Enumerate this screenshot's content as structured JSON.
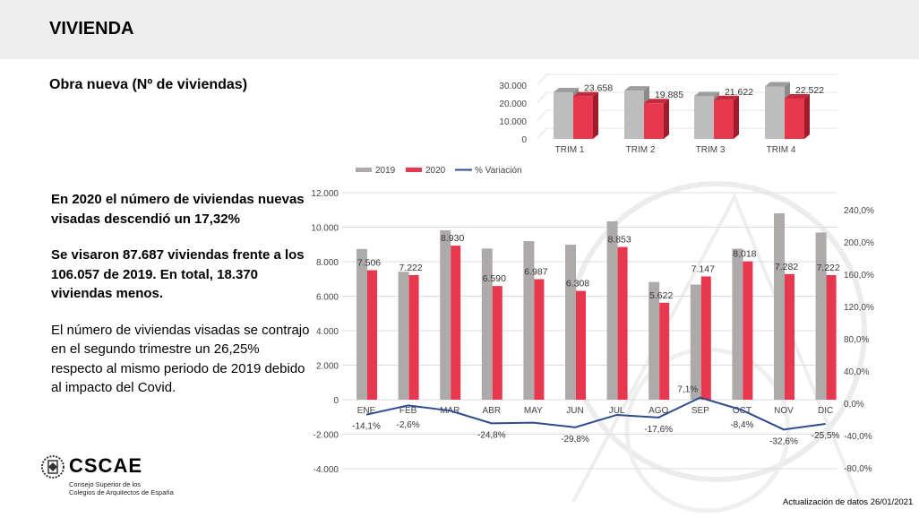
{
  "header": {
    "title": "VIVIENDA"
  },
  "subtitle": "Obra nueva (Nº de viviendas)",
  "text": {
    "p1": "En 2020 el número de viviendas nuevas visadas descendió un 17,32%",
    "p2": "Se visaron 87.687 viviendas frente a los 106.057 de 2019. En total, 18.370 viviendas menos.",
    "p3": "El número de viviendas visadas se contrajo en el segundo trimestre un 26,25% respecto al mismo periodo de 2019 debido al impacto del Covid."
  },
  "logo": {
    "name": "CSCAE",
    "subtitle_line1": "Consejo Superior de los",
    "subtitle_line2": "Colegios de Arquitectos de España"
  },
  "footer": "Actualización de datos 26/01/2021",
  "colors": {
    "y2019": "#aeaaaa",
    "y2020": "#e8384f",
    "variation": "#2f4b8c",
    "header_bg": "#eeeeee"
  },
  "chart_data": [
    {
      "type": "bar-3d",
      "categories": [
        "TRIM 1",
        "TRIM 2",
        "TRIM 3",
        "TRIM 4"
      ],
      "series": [
        {
          "name": "2019",
          "values": [
            25973,
            26939,
            23836,
            29251
          ]
        },
        {
          "name": "2020",
          "values": [
            23658,
            19885,
            21622,
            22522
          ],
          "labels": [
            "23.658",
            "19.885",
            "21.622",
            "22.522"
          ]
        }
      ],
      "yticks": [
        "0",
        "10.000",
        "20.000",
        "30.000"
      ],
      "ylim": [
        0,
        30000
      ],
      "grid": true
    },
    {
      "type": "bar+line",
      "categories": [
        "ENE",
        "FEB",
        "MAR",
        "ABR",
        "MAY",
        "JUN",
        "JUL",
        "AGO",
        "SEP",
        "OCT",
        "NOV",
        "DIC"
      ],
      "series": [
        {
          "name": "2019",
          "values": [
            8738,
            7415,
            9820,
            8763,
            9190,
            8986,
            10340,
            6823,
            6673,
            8753,
            10804,
            9694
          ]
        },
        {
          "name": "2020",
          "values": [
            7506,
            7222,
            8930,
            6590,
            6987,
            6308,
            8853,
            5622,
            7147,
            8018,
            7282,
            7222
          ],
          "labels": [
            "7.506",
            "7.222",
            "8.930",
            "6.590",
            "6.987",
            "6.308",
            "8.853",
            "5.622",
            "7.147",
            "8.018",
            "7.282",
            "7.222"
          ]
        },
        {
          "name": "% Variación",
          "axis": "right",
          "values": [
            -14.1,
            -2.6,
            -9.1,
            -24.8,
            -24.0,
            -29.8,
            -14.4,
            -17.6,
            7.1,
            -8.4,
            -32.6,
            -25.5
          ],
          "labels": [
            "-14,1%",
            "-2,6%",
            null,
            "-24,8%",
            null,
            "-29,8%",
            null,
            "-17,6%",
            "7,1%",
            "-8,4%",
            "-32,6%",
            "-25,5%"
          ]
        }
      ],
      "yticks_left": [
        "-4.000",
        "-2.000",
        "0",
        "2.000",
        "4.000",
        "6.000",
        "8.000",
        "10.000",
        "12.000"
      ],
      "ylim_left": [
        -4000,
        12000
      ],
      "yticks_right": [
        "-80,0%",
        "-40,0%",
        "0,0%",
        "40,0%",
        "80,0%",
        "120,0%",
        "160,0%",
        "200,0%",
        "240,0%"
      ],
      "ylim_right": [
        -80,
        240
      ],
      "legend": "top",
      "grid": true
    }
  ]
}
